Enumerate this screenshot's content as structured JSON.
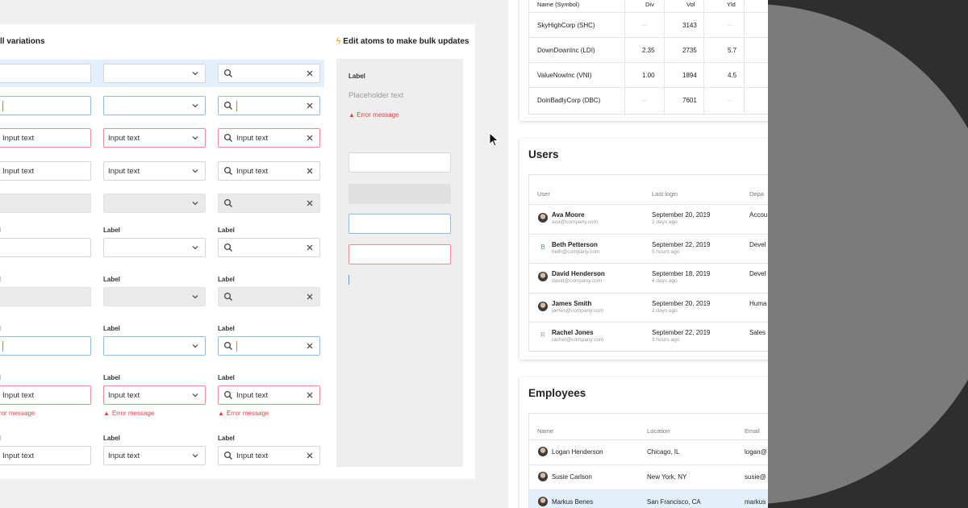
{
  "left_sheet": {
    "title": "ll variations",
    "note": "Edit atoms to make bulk updates",
    "input_text": "Input text",
    "label": "Label",
    "error_message": "Error message",
    "atoms_panel": {
      "label": "Label",
      "placeholder": "Placeholder text",
      "error": "Error message"
    }
  },
  "stocks_table": {
    "headers": [
      "Name (Symbol)",
      "Div",
      "Vol",
      "Yld"
    ],
    "rows": [
      {
        "name": "SkyHighCorp (SHC)",
        "div": "--",
        "vol": "3143",
        "yld": "--"
      },
      {
        "name": "DownDownInc (LDI)",
        "div": "2.35",
        "vol": "2735",
        "yld": "5.7"
      },
      {
        "name": "ValueNowInc (VNI)",
        "div": "1.00",
        "vol": "1894",
        "yld": "4.5"
      },
      {
        "name": "DoinBadlyCorp (DBC)",
        "div": "--",
        "vol": "7601",
        "yld": "--"
      }
    ]
  },
  "users_table": {
    "title": "Users",
    "headers": [
      "User",
      "Last login",
      "Depa"
    ],
    "rows": [
      {
        "name": "Ava Moore",
        "email": "ava@company.com",
        "date": "September 20, 2019",
        "ago": "2 days ago",
        "dept": "Accou",
        "avatar": "photo"
      },
      {
        "name": "Beth Petterson",
        "email": "beth@company.com",
        "date": "September 22, 2019",
        "ago": "5 hours ago",
        "dept": "Devel",
        "avatar": "B"
      },
      {
        "name": "David Henderson",
        "email": "david@company.com",
        "date": "September 18, 2019",
        "ago": "4 days ago",
        "dept": "Devel",
        "avatar": "photo"
      },
      {
        "name": "James Smith",
        "email": "james@company.com",
        "date": "September 20, 2019",
        "ago": "2 days ago",
        "dept": "Huma",
        "avatar": "photo"
      },
      {
        "name": "Rachel Jones",
        "email": "rachel@company.com",
        "date": "September 22, 2019",
        "ago": "3 hours ago",
        "dept": "Sales",
        "avatar": "R"
      }
    ]
  },
  "employees_table": {
    "title": "Employees",
    "headers": [
      "Name",
      "Location",
      "Email"
    ],
    "rows": [
      {
        "name": "Logan Henderson",
        "location": "Chicago, IL",
        "email": "logan@"
      },
      {
        "name": "Susie Carlson",
        "location": "New York, NY",
        "email": "susie@"
      },
      {
        "name": "Markus Benes",
        "location": "San Francisco, CA",
        "email": "markus"
      }
    ]
  },
  "colors": {
    "focus_border": "#8cc0ec",
    "error_border": "#ef8d8d",
    "error_text": "#e04747",
    "selected_row": "#e3effb",
    "letter_avatar_b": "#4a90e2",
    "letter_avatar_r": "#9b8fe0"
  }
}
